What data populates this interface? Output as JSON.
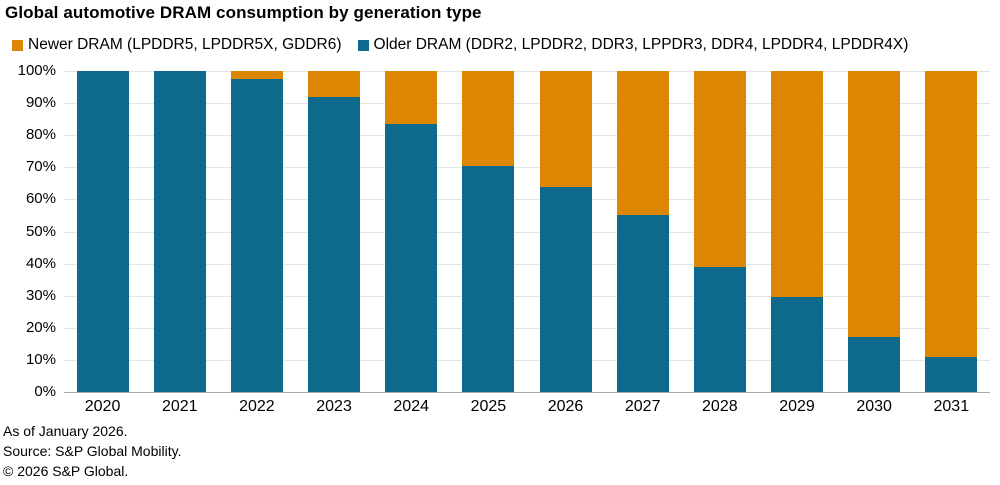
{
  "title": "Global automotive DRAM consumption by generation type",
  "legend": [
    {
      "label": "Newer DRAM (LPDDR5, LPDDR5X, GDDR6)",
      "color": "#DD8604"
    },
    {
      "label": "Older DRAM (DDR2, LPDDR2, DDR3, LPPDR3, DDR4, LPDDR4, LPDDR4X)",
      "color": "#0E6A8C"
    }
  ],
  "chart_data": {
    "type": "bar",
    "stacked": true,
    "title": "Global automotive DRAM consumption by generation type",
    "categories": [
      "2020",
      "2021",
      "2022",
      "2023",
      "2024",
      "2025",
      "2026",
      "2027",
      "2028",
      "2029",
      "2030",
      "2031"
    ],
    "series": [
      {
        "name": "Older DRAM (DDR2, LPDDR2, DDR3, LPPDR3, DDR4, LPDDR4, LPDDR4X)",
        "color": "#0E6A8C",
        "values": [
          100,
          100,
          97.5,
          92,
          83.5,
          70.5,
          64,
          55,
          39,
          29.5,
          17,
          11
        ]
      },
      {
        "name": "Newer DRAM (LPDDR5, LPDDR5X, GDDR6)",
        "color": "#DD8604",
        "values": [
          0,
          0,
          2.5,
          8,
          16.5,
          29.5,
          36,
          45,
          61,
          70.5,
          83,
          89
        ]
      }
    ],
    "xlabel": "",
    "ylabel": "",
    "ylim": [
      0,
      100
    ],
    "y_ticks": [
      "0%",
      "10%",
      "20%",
      "30%",
      "40%",
      "50%",
      "60%",
      "70%",
      "80%",
      "90%",
      "100%"
    ],
    "grid": true,
    "legend_position": "top",
    "gridline_color": "#e4e4e4",
    "axis_line_color": "#a8a8a8"
  },
  "footer": {
    "lines": [
      "As of January 2026.",
      "Source: S&P Global Mobility.",
      "© 2026 S&P Global."
    ]
  }
}
